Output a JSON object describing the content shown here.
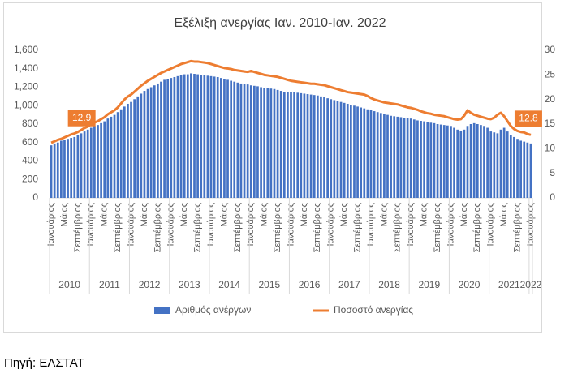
{
  "chart_data": {
    "type": "bar",
    "title": "Εξέλιξη ανεργίας Ιαν. 2010-Ιαν. 2022",
    "categories": [
      "Ιανουάριος",
      null,
      null,
      null,
      "Μάιος",
      null,
      null,
      null,
      "Σεπτέμβριος",
      null,
      null,
      null,
      "Ιανουάριος",
      null,
      null,
      null,
      "Μάιος",
      null,
      null,
      null,
      "Σεπτέμβριος",
      null,
      null,
      null,
      "Ιανουάριος",
      null,
      null,
      null,
      "Μάιος",
      null,
      null,
      null,
      "Σεπτέμβριος",
      null,
      null,
      null,
      "Ιανουάριος",
      null,
      null,
      null,
      "Μάιος",
      null,
      null,
      null,
      "Σεπτέμβριος",
      null,
      null,
      null,
      "Ιανουάριος",
      null,
      null,
      null,
      "Μάιος",
      null,
      null,
      null,
      "Σεπτέμβριος",
      null,
      null,
      null,
      "Ιανουάριος",
      null,
      null,
      null,
      "Μάιος",
      null,
      null,
      null,
      "Σεπτέμβριος",
      null,
      null,
      null,
      "Ιανουάριος",
      null,
      null,
      null,
      "Μάιος",
      null,
      null,
      null,
      "Σεπτέμβριος",
      null,
      null,
      null,
      "Ιανουάριος",
      null,
      null,
      null,
      "Μάιος",
      null,
      null,
      null,
      "Σεπτέμβριος",
      null,
      null,
      null,
      "Ιανουάριος",
      null,
      null,
      null,
      "Μάιος",
      null,
      null,
      null,
      "Σεπτέμβριος",
      null,
      null,
      null,
      "Ιανουάριος",
      null,
      null,
      null,
      "Μάιος",
      null,
      null,
      null,
      "Σεπτέμβριος",
      null,
      null,
      null,
      "Ιανουάριος",
      null,
      null,
      null,
      "Μάιος",
      null,
      null,
      null,
      "Σεπτέμβριος",
      null,
      null,
      null,
      "Ιανουάριος",
      null,
      null,
      null,
      "Μάιος",
      null,
      null,
      null,
      "Σεπτέμβριος",
      null,
      null,
      null,
      "Ιανουάριος"
    ],
    "years": [
      "2010",
      "2011",
      "2012",
      "2013",
      "2014",
      "2015",
      "2016",
      "2017",
      "2018",
      "2019",
      "2020",
      "2021",
      "2022"
    ],
    "series": [
      {
        "name": "Αριθμός ανέργων",
        "color": "#4472c4",
        "type": "bar",
        "values": [
          570,
          590,
          600,
          620,
          630,
          640,
          650,
          660,
          680,
          700,
          720,
          740,
          760,
          780,
          790,
          810,
          830,
          860,
          880,
          900,
          930,
          960,
          990,
          1020,
          1040,
          1070,
          1100,
          1130,
          1160,
          1180,
          1200,
          1220,
          1240,
          1260,
          1280,
          1290,
          1300,
          1310,
          1320,
          1330,
          1340,
          1340,
          1350,
          1345,
          1340,
          1335,
          1330,
          1325,
          1320,
          1315,
          1310,
          1300,
          1290,
          1280,
          1270,
          1260,
          1250,
          1240,
          1235,
          1230,
          1220,
          1215,
          1210,
          1200,
          1195,
          1190,
          1185,
          1180,
          1170,
          1160,
          1150,
          1150,
          1150,
          1145,
          1140,
          1135,
          1130,
          1125,
          1120,
          1115,
          1110,
          1100,
          1090,
          1080,
          1070,
          1060,
          1050,
          1040,
          1030,
          1020,
          1010,
          1000,
          990,
          980,
          970,
          960,
          950,
          940,
          930,
          920,
          910,
          900,
          890,
          885,
          880,
          875,
          870,
          865,
          860,
          850,
          840,
          835,
          830,
          820,
          815,
          810,
          800,
          795,
          790,
          785,
          780,
          760,
          740,
          730,
          740,
          780,
          800,
          810,
          800,
          790,
          780,
          760,
          720,
          710,
          700,
          740,
          760,
          720,
          680,
          660,
          640,
          620,
          610,
          600,
          590
        ]
      },
      {
        "name": "Ποσοστό ανεργίας",
        "color": "#ed7d31",
        "type": "line",
        "axis": "y2",
        "values": [
          11.2,
          11.5,
          11.8,
          12.0,
          12.3,
          12.6,
          12.9,
          13.1,
          13.4,
          13.8,
          14.2,
          14.5,
          15.0,
          15.3,
          15.6,
          16.0,
          16.4,
          17.0,
          17.4,
          17.8,
          18.4,
          19.2,
          20.0,
          20.6,
          21.0,
          21.6,
          22.2,
          22.8,
          23.3,
          23.8,
          24.2,
          24.6,
          25.0,
          25.4,
          25.7,
          26.0,
          26.3,
          26.6,
          26.9,
          27.2,
          27.4,
          27.6,
          27.8,
          27.7,
          27.7,
          27.6,
          27.5,
          27.4,
          27.2,
          27.0,
          26.8,
          26.6,
          26.4,
          26.3,
          26.2,
          26.0,
          25.9,
          25.8,
          25.7,
          25.6,
          25.8,
          25.6,
          25.4,
          25.2,
          25.0,
          24.9,
          24.8,
          24.7,
          24.6,
          24.4,
          24.2,
          24.0,
          23.8,
          23.7,
          23.6,
          23.5,
          23.4,
          23.3,
          23.2,
          23.2,
          23.1,
          23.0,
          22.9,
          22.7,
          22.5,
          22.3,
          22.1,
          21.9,
          21.7,
          21.5,
          21.4,
          21.3,
          21.2,
          21.1,
          21.0,
          20.7,
          20.3,
          20.0,
          19.8,
          19.6,
          19.4,
          19.3,
          19.2,
          19.1,
          19.0,
          18.8,
          18.6,
          18.4,
          18.3,
          18.1,
          17.9,
          17.6,
          17.4,
          17.2,
          17.1,
          16.9,
          16.8,
          16.7,
          16.6,
          16.4,
          16.2,
          16.0,
          15.9,
          16.0,
          16.7,
          17.8,
          17.3,
          16.9,
          16.7,
          16.5,
          16.3,
          16.1,
          16.0,
          16.3,
          16.9,
          17.3,
          16.6,
          15.6,
          14.6,
          14.0,
          13.6,
          13.4,
          13.3,
          13.0,
          12.8
        ],
        "value_labels": [
          null,
          null,
          null,
          null,
          null,
          null,
          "12.9",
          null,
          null,
          null,
          null,
          null,
          null,
          null,
          null,
          null,
          null,
          null,
          null,
          null,
          null,
          null,
          null,
          null,
          null,
          null,
          null,
          null,
          null,
          null,
          null,
          null,
          null,
          null,
          null,
          null,
          null,
          null,
          null,
          null,
          null,
          null,
          null,
          null,
          null,
          null,
          null,
          null,
          null,
          null,
          null,
          null,
          null,
          null,
          null,
          null,
          null,
          null,
          null,
          null,
          null,
          null,
          null,
          null,
          null,
          null,
          null,
          null,
          null,
          null,
          null,
          null,
          null,
          null,
          null,
          null,
          null,
          null,
          null,
          null,
          null,
          null,
          null,
          null,
          null,
          null,
          null,
          null,
          null,
          null,
          null,
          null,
          null,
          null,
          null,
          null,
          null,
          null,
          null,
          null,
          null,
          null,
          null,
          null,
          null,
          null,
          null,
          null,
          null,
          null,
          null,
          null,
          null,
          null,
          null,
          null,
          null,
          null,
          null,
          null,
          null,
          null,
          null,
          null,
          null,
          null,
          null,
          null,
          null,
          null,
          null,
          null,
          null,
          null,
          null,
          null,
          null,
          null,
          null,
          null,
          null,
          null,
          null,
          null,
          "12.8"
        ]
      }
    ],
    "ylim": [
      0,
      1600
    ],
    "yticks": [
      0,
      200,
      400,
      600,
      800,
      {
        "value": 1000,
        "label": "1,000"
      },
      {
        "value": 1200,
        "label": "1,200"
      },
      {
        "value": 1400,
        "label": "1,400"
      },
      {
        "value": 1600,
        "label": "1,600"
      }
    ],
    "y2lim": [
      0,
      30
    ],
    "y2ticks": [
      0,
      5,
      10,
      15,
      20,
      25,
      30
    ],
    "grid": false,
    "legend": "bottom",
    "source": "Πηγή: ΕΛΣΤΑΤ"
  }
}
